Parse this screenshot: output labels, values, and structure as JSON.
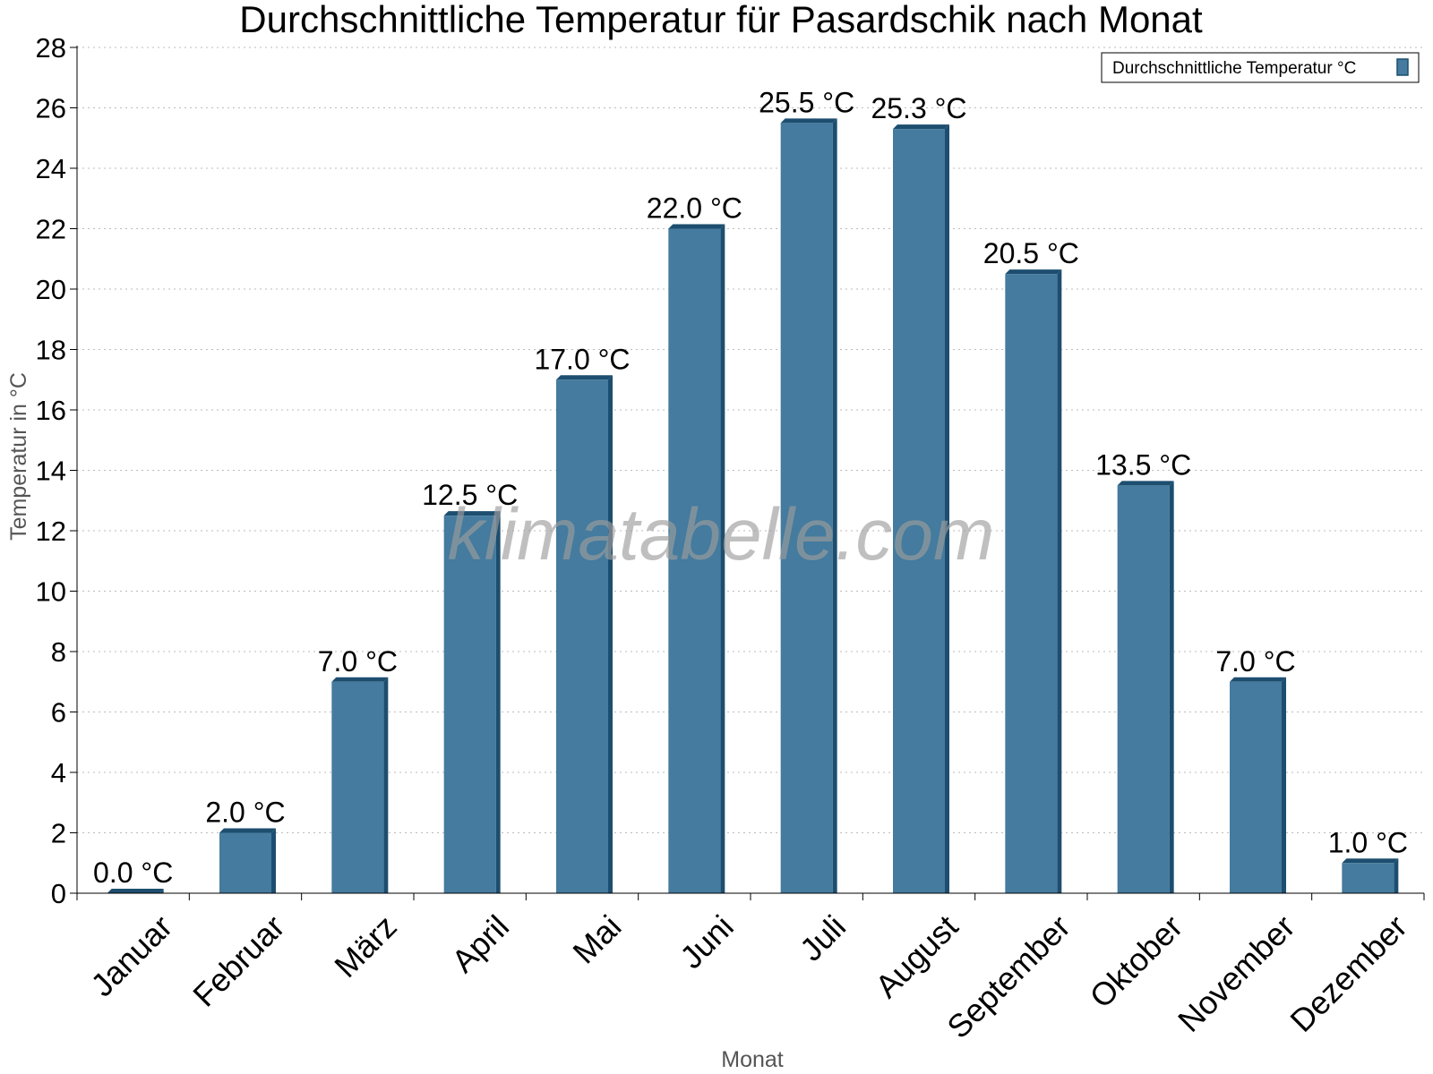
{
  "chart_data": {
    "type": "bar",
    "title": "Durchschnittliche Temperatur für Pasardschik nach Monat",
    "xlabel": "Monat",
    "ylabel": "Temperatur in °C",
    "categories": [
      "Januar",
      "Februar",
      "März",
      "April",
      "Mai",
      "Juni",
      "Juli",
      "August",
      "September",
      "Oktober",
      "November",
      "Dezember"
    ],
    "series": [
      {
        "name": "Durchschnittliche Temperatur °C",
        "values": [
          0.0,
          2.0,
          7.0,
          12.5,
          17.0,
          22.0,
          25.5,
          25.3,
          20.5,
          13.5,
          7.0,
          1.0
        ],
        "data_labels": [
          "0.0 °C",
          "2.0 °C",
          "7.0 °C",
          "12.5 °C",
          "17.0 °C",
          "22.0 °C",
          "25.5 °C",
          "25.3 °C",
          "20.5 °C",
          "13.5 °C",
          "7.0 °C",
          "1.0 °C"
        ]
      }
    ],
    "ylim": [
      0,
      28
    ],
    "yticks": [
      0,
      2,
      4,
      6,
      8,
      10,
      12,
      14,
      16,
      18,
      20,
      22,
      24,
      26,
      28
    ],
    "grid": true,
    "legend_position": "top-right",
    "colors": {
      "bar": "#447b9e",
      "bar_side": "#1d4e6f",
      "grid": "#bbbbbb"
    }
  },
  "watermark": "klimatabelle.com"
}
